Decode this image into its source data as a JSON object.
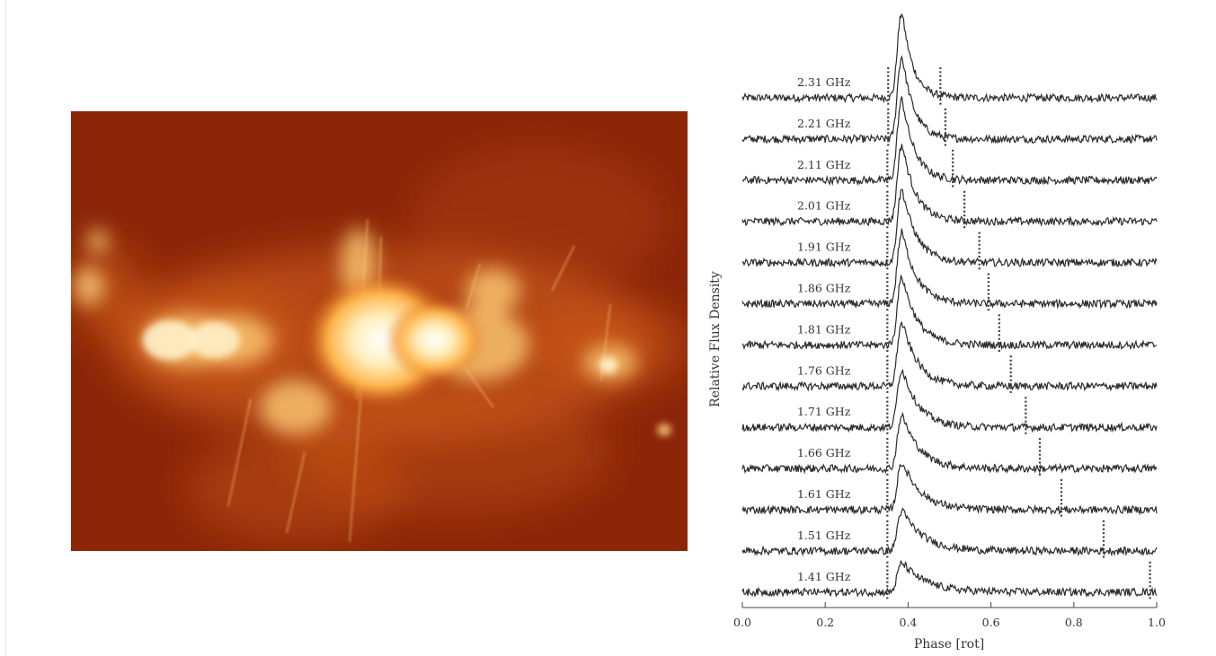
{
  "image_panel": {
    "subject": "radio continuum image of the galactic center",
    "colormap": "black-red-orange-yellow-white",
    "colors": {
      "background": "#8c2608",
      "glow": "#d6621c",
      "bright": "#ffd27a",
      "core": "#fff3cf"
    }
  },
  "chart_data": {
    "type": "line",
    "xlabel": "Phase [rot]",
    "ylabel": "Relative Flux Density",
    "xlim": [
      0.0,
      1.0
    ],
    "x_ticks": [
      "0.0",
      "0.2",
      "0.4",
      "0.6",
      "0.8",
      "1.0"
    ],
    "grid": false,
    "legend": "none",
    "line_color": "#2b2b2b",
    "marker_style": "vertical dotted lines",
    "pulse_peak_phase": 0.385,
    "series": [
      {
        "label": "2.31 GHz",
        "peak": 1.0,
        "width": 0.026,
        "markers": [
          0.352,
          0.478
        ]
      },
      {
        "label": "2.21 GHz",
        "peak": 0.97,
        "width": 0.028,
        "markers": [
          0.352,
          0.49
        ]
      },
      {
        "label": "2.11 GHz",
        "peak": 0.95,
        "width": 0.03,
        "markers": [
          0.35,
          0.508
        ]
      },
      {
        "label": "2.01 GHz",
        "peak": 0.9,
        "width": 0.032,
        "markers": [
          0.35,
          0.536
        ]
      },
      {
        "label": "1.91 GHz",
        "peak": 0.86,
        "width": 0.034,
        "markers": [
          0.35,
          0.572
        ]
      },
      {
        "label": "1.86 GHz",
        "peak": 0.84,
        "width": 0.035,
        "markers": [
          0.35,
          0.594
        ]
      },
      {
        "label": "1.81 GHz",
        "peak": 0.8,
        "width": 0.036,
        "markers": [
          0.35,
          0.62
        ]
      },
      {
        "label": "1.76 GHz",
        "peak": 0.74,
        "width": 0.038,
        "markers": [
          0.35,
          0.648
        ]
      },
      {
        "label": "1.71 GHz",
        "peak": 0.68,
        "width": 0.04,
        "markers": [
          0.35,
          0.684
        ]
      },
      {
        "label": "1.66 GHz",
        "peak": 0.62,
        "width": 0.042,
        "markers": [
          0.35,
          0.718
        ]
      },
      {
        "label": "1.61 GHz",
        "peak": 0.55,
        "width": 0.045,
        "markers": [
          0.35,
          0.77
        ]
      },
      {
        "label": "1.51 GHz",
        "peak": 0.47,
        "width": 0.05,
        "markers": [
          0.35,
          0.872
        ]
      },
      {
        "label": "1.41 GHz",
        "peak": 0.34,
        "width": 0.056,
        "markers": [
          0.35,
          0.984
        ]
      }
    ]
  }
}
